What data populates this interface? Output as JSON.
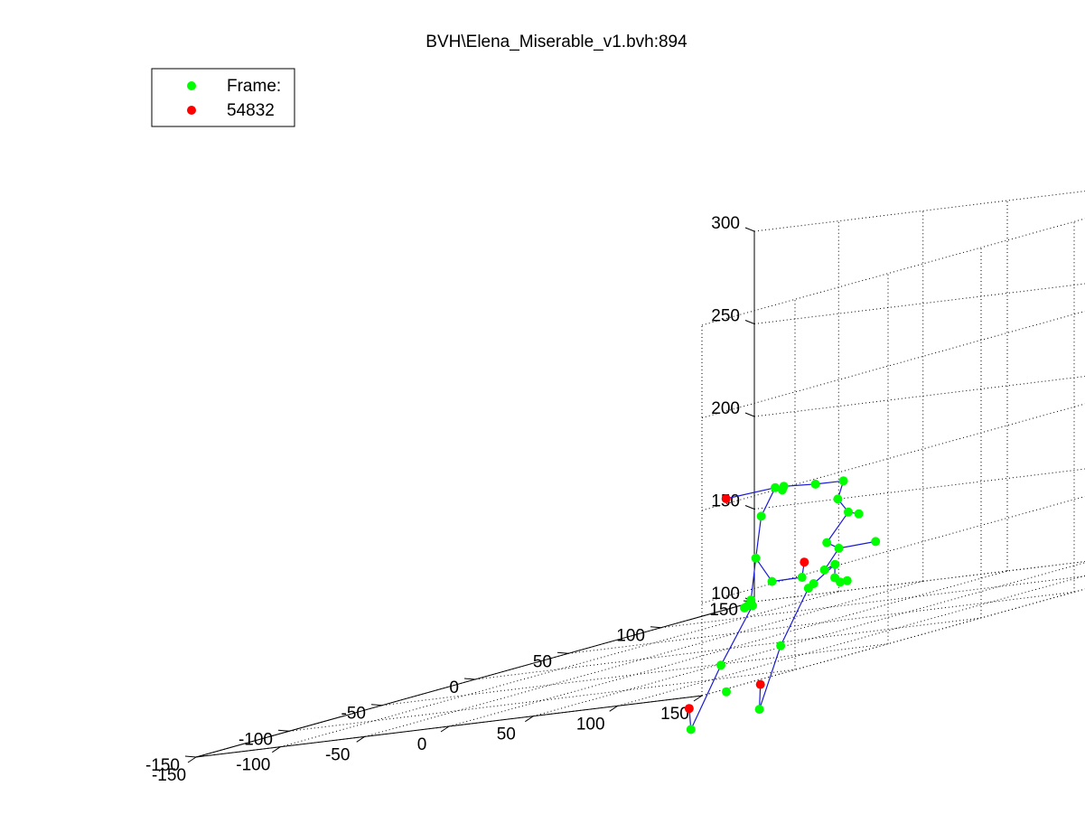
{
  "figure": {
    "title": "BVH\\Elena_Miserable_v1.bvh:894"
  },
  "legend": {
    "entries": [
      {
        "label": "Frame:",
        "color": "#00ff00"
      },
      {
        "label": "54832",
        "color": "#ff0000"
      }
    ]
  },
  "colors": {
    "joint_green": "#00ff00",
    "joint_red": "#ff0000",
    "bone_blue": "#1a1ad6"
  },
  "chart_data": {
    "type": "scatter",
    "title": "BVH\\Elena_Miserable_v1.bvh:894",
    "xlabel": "",
    "ylabel": "",
    "zlabel": "",
    "grid": true,
    "legend_position": "top-left",
    "axes": {
      "x": {
        "range": [
          -150,
          150
        ],
        "ticks": [
          -150,
          -100,
          -50,
          0,
          50,
          100,
          150
        ]
      },
      "y": {
        "range": [
          -150,
          150
        ],
        "ticks": [
          -150,
          -100,
          -50,
          0,
          50,
          100,
          150
        ]
      },
      "z": {
        "range": [
          100,
          300
        ],
        "ticks": [
          100,
          150,
          200,
          250,
          300
        ]
      }
    },
    "series": [
      {
        "name": "Frame:",
        "color": "#00ff00",
        "points": [
          {
            "x": 29,
            "y": -1,
            "z": 184
          },
          {
            "x": 33,
            "y": 0,
            "z": 184
          },
          {
            "x": 31,
            "y": 1,
            "z": 182
          },
          {
            "x": 44,
            "y": 7,
            "z": 182
          },
          {
            "x": 54,
            "y": 13,
            "z": 181
          },
          {
            "x": 24,
            "y": -4,
            "z": 170
          },
          {
            "x": 23,
            "y": -6,
            "z": 148
          },
          {
            "x": 37,
            "y": -10,
            "z": 135
          },
          {
            "x": 46,
            "y": -2,
            "z": 134
          },
          {
            "x": 29,
            "y": -14,
            "z": 127
          },
          {
            "x": 26,
            "y": -13,
            "z": 124
          },
          {
            "x": 24,
            "y": -13,
            "z": 123
          },
          {
            "x": 31,
            "y": -15,
            "z": 124
          },
          {
            "x": 20,
            "y": -22,
            "z": 95
          },
          {
            "x": 0,
            "y": -20,
            "z": 62
          },
          {
            "x": 21,
            "y": -20,
            "z": 80
          },
          {
            "x": 54,
            "y": 10,
            "z": 172
          },
          {
            "x": 58,
            "y": 12,
            "z": 164
          },
          {
            "x": 62,
            "y": 14,
            "z": 162
          },
          {
            "x": 53,
            "y": 5,
            "z": 150
          },
          {
            "x": 59,
            "y": 6,
            "z": 146
          },
          {
            "x": 72,
            "y": 14,
            "z": 146
          },
          {
            "x": 56,
            "y": 1,
            "z": 136
          },
          {
            "x": 60,
            "y": 3,
            "z": 138
          },
          {
            "x": 61,
            "y": 2,
            "z": 131
          },
          {
            "x": 62,
            "y": 4,
            "z": 128
          },
          {
            "x": 64,
            "y": 6,
            "z": 128
          },
          {
            "x": 54,
            "y": -3,
            "z": 130
          },
          {
            "x": 52,
            "y": -4,
            "z": 128
          },
          {
            "x": 51,
            "y": -18,
            "z": 101
          },
          {
            "x": 45,
            "y": -24,
            "z": 69
          }
        ]
      },
      {
        "name": "54832",
        "color": "#ff0000",
        "points": [
          {
            "x": 12,
            "y": -12,
            "z": 183
          },
          {
            "x": 54,
            "y": -8,
            "z": 143
          },
          {
            "x": 10,
            "y": -30,
            "z": 75
          },
          {
            "x": 50,
            "y": -28,
            "z": 83
          }
        ]
      }
    ],
    "bones": [
      [
        0,
        1
      ],
      [
        1,
        3
      ],
      [
        3,
        4
      ],
      [
        0,
        5
      ],
      [
        5,
        6
      ],
      [
        6,
        7
      ],
      [
        7,
        8
      ],
      [
        6,
        9
      ],
      [
        9,
        10
      ],
      [
        10,
        11
      ],
      [
        9,
        12
      ],
      [
        12,
        13
      ],
      [
        13,
        14
      ],
      [
        4,
        16
      ],
      [
        16,
        17
      ],
      [
        17,
        18
      ],
      [
        17,
        19
      ],
      [
        19,
        20
      ],
      [
        20,
        21
      ],
      [
        20,
        22
      ],
      [
        22,
        23
      ],
      [
        23,
        24
      ],
      [
        24,
        25
      ],
      [
        25,
        26
      ],
      [
        23,
        27
      ],
      [
        27,
        28
      ],
      [
        28,
        29
      ],
      [
        29,
        30
      ],
      [
        0,
        31
      ],
      [
        14,
        33
      ],
      [
        30,
        34
      ],
      [
        8,
        32
      ]
    ]
  }
}
